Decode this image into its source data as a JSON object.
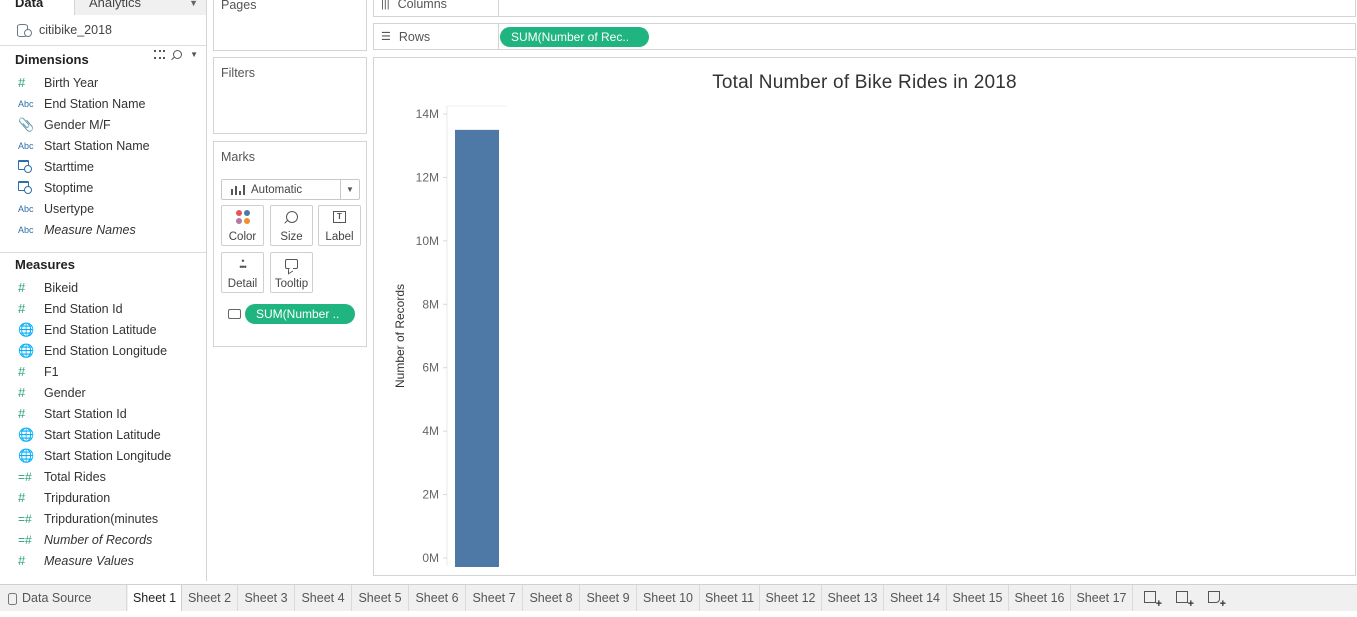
{
  "datapane": {
    "tab_data": "Data",
    "tab_analytics": "Analytics",
    "datasource": "citibike_2018",
    "dimensions_title": "Dimensions",
    "dimensions": [
      {
        "icon": "hash",
        "label": "Birth Year",
        "italic": false
      },
      {
        "icon": "abc",
        "label": "End Station Name",
        "italic": false
      },
      {
        "icon": "clip",
        "label": "Gender M/F",
        "italic": false
      },
      {
        "icon": "abc",
        "label": "Start Station Name",
        "italic": false
      },
      {
        "icon": "calendar",
        "label": "Starttime",
        "italic": false
      },
      {
        "icon": "calendar",
        "label": "Stoptime",
        "italic": false
      },
      {
        "icon": "abc",
        "label": "Usertype",
        "italic": false
      },
      {
        "icon": "abc",
        "label": "Measure Names",
        "italic": true
      }
    ],
    "measures_title": "Measures",
    "measures": [
      {
        "icon": "hash",
        "label": "Bikeid",
        "italic": false
      },
      {
        "icon": "hash",
        "label": "End Station Id",
        "italic": false
      },
      {
        "icon": "globe",
        "label": "End Station Latitude",
        "italic": false
      },
      {
        "icon": "globe",
        "label": "End Station Longitude",
        "italic": false
      },
      {
        "icon": "hash",
        "label": "F1",
        "italic": false
      },
      {
        "icon": "hash",
        "label": "Gender",
        "italic": false
      },
      {
        "icon": "hash",
        "label": "Start Station Id",
        "italic": false
      },
      {
        "icon": "globe",
        "label": "Start Station Latitude",
        "italic": false
      },
      {
        "icon": "globe",
        "label": "Start Station Longitude",
        "italic": false
      },
      {
        "icon": "eqhash",
        "label": "Total Rides",
        "italic": false
      },
      {
        "icon": "hash",
        "label": "Tripduration",
        "italic": false
      },
      {
        "icon": "eqhash",
        "label": "Tripduration(minutes",
        "italic": false
      },
      {
        "icon": "eqhash",
        "label": "Number of Records",
        "italic": true
      },
      {
        "icon": "hash",
        "label": "Measure Values",
        "italic": true
      }
    ]
  },
  "cards": {
    "pages": "Pages",
    "filters": "Filters",
    "marks": "Marks",
    "mark_type": "Automatic",
    "buttons": {
      "color": "Color",
      "size": "Size",
      "label": "Label",
      "detail": "Detail",
      "tooltip": "Tooltip"
    },
    "marks_pill": "SUM(Number .."
  },
  "shelves": {
    "columns": "Columns",
    "rows": "Rows",
    "rows_pill": "SUM(Number of Rec.."
  },
  "colors": {
    "bar": "#4e79a7",
    "pill": "#1fb480",
    "color_dots": [
      "#e15759",
      "#4e79a7",
      "#b07aa1",
      "#f28e2b"
    ]
  },
  "chart_data": {
    "type": "bar",
    "title": "Total Number of Bike Rides in 2018",
    "ylabel": "Number of Records",
    "xlabel": "",
    "categories": [
      ""
    ],
    "values": [
      13500000
    ],
    "ylim": [
      0,
      14000000
    ],
    "yticks": [
      {
        "value": 0,
        "label": "0M"
      },
      {
        "value": 2000000,
        "label": "2M"
      },
      {
        "value": 4000000,
        "label": "4M"
      },
      {
        "value": 6000000,
        "label": "6M"
      },
      {
        "value": 8000000,
        "label": "8M"
      },
      {
        "value": 10000000,
        "label": "10M"
      },
      {
        "value": 12000000,
        "label": "12M"
      },
      {
        "value": 14000000,
        "label": "14M"
      }
    ],
    "grid": false
  },
  "tabbar": {
    "datasource": "Data Source",
    "sheets": [
      "Sheet 1",
      "Sheet 2",
      "Sheet 3",
      "Sheet 4",
      "Sheet 5",
      "Sheet 6",
      "Sheet 7",
      "Sheet 8",
      "Sheet 9",
      "Sheet 10",
      "Sheet 11",
      "Sheet 12",
      "Sheet 13",
      "Sheet 14",
      "Sheet 15",
      "Sheet 16",
      "Sheet 17"
    ],
    "active": "Sheet 1"
  }
}
